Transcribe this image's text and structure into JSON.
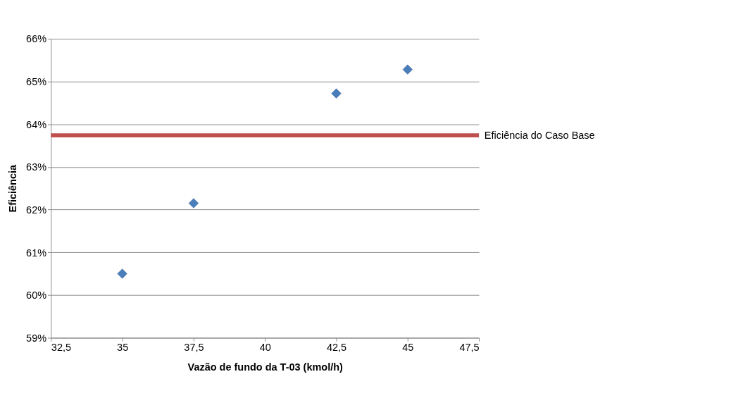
{
  "chart_data": {
    "type": "scatter",
    "xlabel": "Vazão de fundo da T-03 (kmol/h)",
    "ylabel": "Eficiência",
    "x": [
      35,
      37.5,
      42.5,
      45
    ],
    "series": [
      {
        "color": "#4a7ebb",
        "values": [
          60.5,
          62.15,
          64.72,
          65.28
        ]
      }
    ],
    "xlim": [
      32.5,
      47.5
    ],
    "xticks": [
      {
        "value": 32.5,
        "label": "32,5"
      },
      35,
      {
        "value": 37.5,
        "label": "37,5"
      },
      40,
      {
        "value": 42.5,
        "label": "42,5"
      },
      45,
      {
        "value": 47.5,
        "label": "47,5"
      }
    ],
    "ylim": [
      59,
      66
    ],
    "yticks": [
      {
        "value": 59,
        "label": "59%"
      },
      {
        "value": 60,
        "label": "60%"
      },
      {
        "value": 61,
        "label": "61%"
      },
      {
        "value": 62,
        "label": "62%"
      },
      {
        "value": 63,
        "label": "63%"
      },
      {
        "value": 64,
        "label": "64%"
      },
      {
        "value": 65,
        "label": "65%"
      },
      {
        "value": 66,
        "label": "66%"
      }
    ],
    "ref_lines": [
      {
        "axis": "y",
        "value": 63.74,
        "label": "Eficiência do Caso Base",
        "color": "#c0504d"
      }
    ],
    "grid": "y",
    "marker": "diamond"
  }
}
